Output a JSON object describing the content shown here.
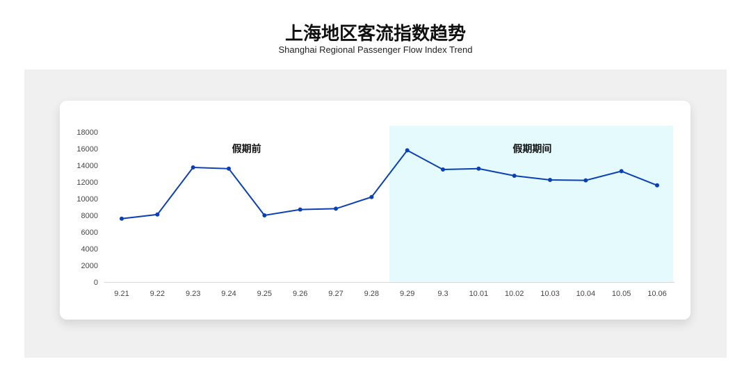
{
  "header": {
    "title": "上海地区客流指数趋势",
    "subtitle": "Shanghai Regional Passenger Flow Index Trend"
  },
  "chart_data": {
    "type": "line",
    "categories": [
      "9.21",
      "9.22",
      "9.23",
      "9.24",
      "9.25",
      "9.26",
      "9.27",
      "9.28",
      "9.29",
      "9.3",
      "10.01",
      "10.02",
      "10.03",
      "10.04",
      "10.05",
      "10.06"
    ],
    "values": [
      7600,
      8100,
      13750,
      13600,
      8000,
      8700,
      8800,
      10200,
      15800,
      13500,
      13600,
      12750,
      12250,
      12200,
      13300,
      11600
    ],
    "ylim": [
      0,
      18000
    ],
    "yticks": [
      0,
      2000,
      4000,
      6000,
      8000,
      10000,
      12000,
      14000,
      16000,
      18000
    ],
    "grid": false,
    "line_color": "#0a3fb5",
    "regions": [
      {
        "label": "假期前",
        "from": "9.21",
        "to": "9.28",
        "color": "#ffffff"
      },
      {
        "label": "假期期间",
        "from": "9.29",
        "to": "10.06",
        "color": "#e4fafd"
      }
    ]
  }
}
